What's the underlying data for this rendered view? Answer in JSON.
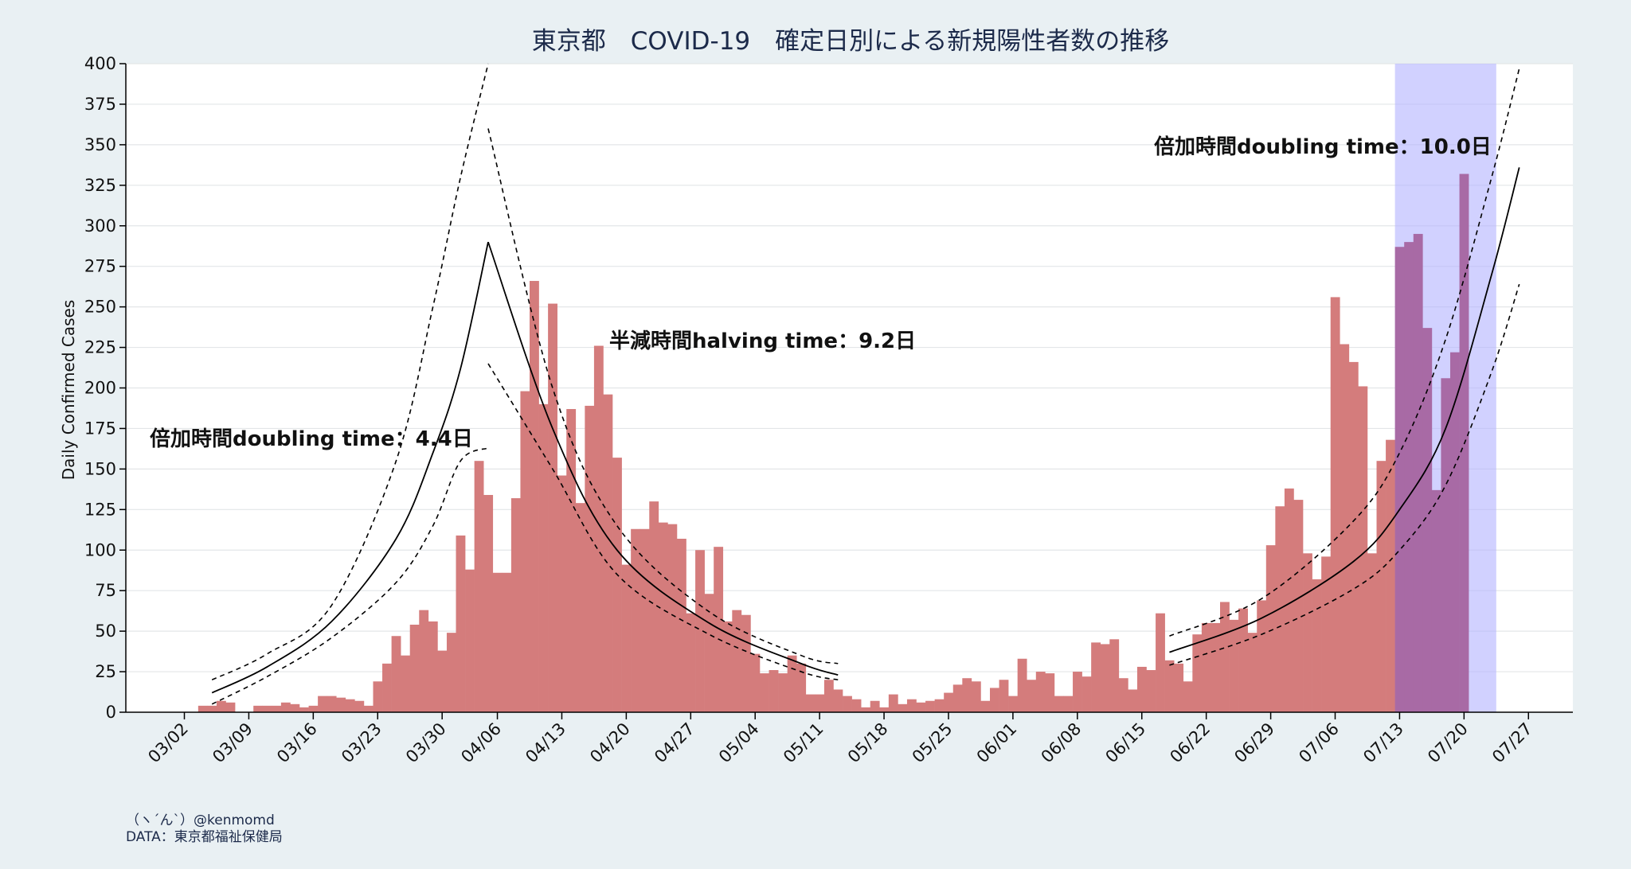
{
  "title": "東京都　COVID-19　確定日別による新規陽性者数の推移",
  "credit": {
    "line1": "（ヽ´ん`）@kenmomd",
    "line2": "DATA：東京都福祉保健局"
  },
  "annotations": {
    "doubling_1": "倍加時間doubling time：4.4日",
    "halving": "半減時間halving time：9.2日",
    "doubling_2": "倍加時間doubling time：10.0日"
  },
  "colors": {
    "bar": "#d47c7c",
    "highlight_band": "#b3b3ff",
    "highlight_bar": "#a86aa5",
    "background": "#e9f0f3",
    "plot_background": "#ffffff"
  },
  "chart_data": {
    "type": "bar",
    "title": "東京都　COVID-19　確定日別による新規陽性者数の推移",
    "ylabel": "Daily Confirmed Cases",
    "xlabel": "",
    "ylim": [
      0,
      400
    ],
    "yticks": [
      0,
      25,
      50,
      75,
      100,
      125,
      150,
      175,
      200,
      225,
      250,
      275,
      300,
      325,
      350,
      375,
      400
    ],
    "xticks": [
      "03/02",
      "03/09",
      "03/16",
      "03/23",
      "03/30",
      "04/06",
      "04/13",
      "04/20",
      "04/27",
      "05/04",
      "05/11",
      "05/18",
      "05/25",
      "06/01",
      "06/08",
      "06/15",
      "06/22",
      "06/29",
      "07/06",
      "07/13",
      "07/20",
      "07/27"
    ],
    "grid": true,
    "highlight_range": [
      "07/13",
      "07/23"
    ],
    "bars": {
      "start_date": "03/04",
      "values": [
        4,
        4,
        7,
        6,
        0,
        0,
        4,
        4,
        4,
        6,
        5,
        3,
        4,
        10,
        10,
        9,
        8,
        7,
        4,
        19,
        30,
        47,
        35,
        54,
        63,
        56,
        38,
        49,
        109,
        88,
        155,
        134,
        86,
        86,
        132,
        198,
        266,
        190,
        252,
        146,
        187,
        129,
        189,
        226,
        196,
        157,
        91,
        113,
        113,
        130,
        117,
        116,
        107,
        61,
        100,
        73,
        102,
        56,
        63,
        60,
        36,
        24,
        26,
        24,
        35,
        30,
        11,
        11,
        20,
        14,
        10,
        8,
        3,
        7,
        3,
        11,
        5,
        8,
        6,
        7,
        8,
        12,
        17,
        21,
        19,
        7,
        15,
        20,
        10,
        33,
        20,
        25,
        24,
        10,
        10,
        25,
        22,
        43,
        42,
        45,
        21,
        14,
        28,
        26,
        61,
        32,
        30,
        19,
        48,
        55,
        55,
        68,
        57,
        64,
        49,
        69,
        103,
        127,
        138,
        131,
        98,
        82,
        96,
        256,
        227,
        216,
        201,
        98,
        155,
        168,
        287,
        290,
        295,
        237,
        137,
        206,
        222,
        332
      ]
    },
    "fits": {
      "doubling_1": {
        "center": [
          [
            1,
            12
          ],
          [
            7,
            28
          ],
          [
            14,
            56
          ],
          [
            21,
            107
          ],
          [
            25,
            160
          ],
          [
            28,
            212
          ],
          [
            31,
            290
          ]
        ],
        "upper": [
          [
            1,
            20
          ],
          [
            7,
            36
          ],
          [
            14,
            66
          ],
          [
            21,
            155
          ],
          [
            25,
            250
          ],
          [
            28,
            330
          ],
          [
            31,
            400
          ]
        ],
        "lower": [
          [
            1,
            5
          ],
          [
            7,
            22
          ],
          [
            14,
            46
          ],
          [
            21,
            80
          ],
          [
            25,
            115
          ],
          [
            28,
            155
          ],
          [
            31,
            163
          ]
        ]
      },
      "halving": {
        "center": [
          [
            31,
            290
          ],
          [
            38,
            175
          ],
          [
            45,
            100
          ],
          [
            55,
            55
          ],
          [
            65,
            30
          ],
          [
            69,
            23
          ]
        ],
        "upper": [
          [
            31,
            360
          ],
          [
            38,
            200
          ],
          [
            45,
            115
          ],
          [
            55,
            62
          ],
          [
            65,
            35
          ],
          [
            69,
            30
          ]
        ],
        "lower": [
          [
            31,
            215
          ],
          [
            38,
            150
          ],
          [
            45,
            85
          ],
          [
            55,
            48
          ],
          [
            65,
            25
          ],
          [
            69,
            20
          ]
        ]
      },
      "doubling_2": {
        "center": [
          [
            105,
            37
          ],
          [
            115,
            58
          ],
          [
            125,
            93
          ],
          [
            130,
            125
          ],
          [
            135,
            175
          ],
          [
            140,
            270
          ],
          [
            143,
            336
          ]
        ],
        "upper": [
          [
            105,
            47
          ],
          [
            115,
            70
          ],
          [
            125,
            118
          ],
          [
            130,
            160
          ],
          [
            135,
            230
          ],
          [
            140,
            330
          ],
          [
            143,
            397
          ]
        ],
        "lower": [
          [
            105,
            29
          ],
          [
            115,
            48
          ],
          [
            125,
            76
          ],
          [
            130,
            100
          ],
          [
            135,
            140
          ],
          [
            140,
            210
          ],
          [
            143,
            264
          ]
        ]
      }
    }
  }
}
